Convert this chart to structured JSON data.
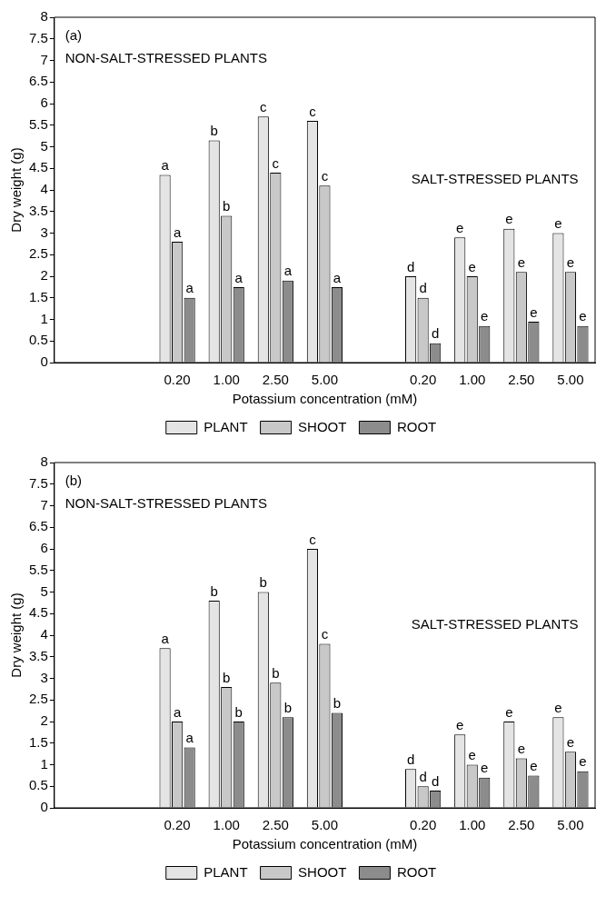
{
  "chart_data": [
    {
      "type": "bar",
      "xlabel": "Potassium concentration (mM)",
      "ylabel": "Dry weight (g)",
      "annotations": [
        "(a)",
        "NON-SALT-STRESSED PLANTS",
        "SALT-STRESSED PLANTS"
      ],
      "categories": [
        null,
        null,
        "0.20",
        "1.00",
        "2.50",
        "5.00",
        null,
        "0.20",
        "1.00",
        "2.50",
        "5.00"
      ],
      "ylim": [
        0,
        8
      ],
      "yticks": [
        0,
        0.5,
        1,
        1.5,
        2,
        2.5,
        3,
        3.5,
        4,
        4.5,
        5,
        5.5,
        6,
        6.5,
        7,
        7.5,
        8
      ],
      "grid": false,
      "legend": "bottom",
      "series": [
        {
          "name": "PLANT",
          "color": "#e4e4e4",
          "values": [
            null,
            null,
            4.35,
            5.15,
            5.7,
            5.6,
            null,
            2.0,
            2.9,
            3.1,
            3.0
          ],
          "value_labels": [
            null,
            null,
            "a",
            "b",
            "c",
            "c",
            null,
            "d",
            "e",
            "e",
            "e"
          ]
        },
        {
          "name": "SHOOT",
          "color": "#c8c8c8",
          "values": [
            null,
            null,
            2.8,
            3.4,
            4.4,
            4.1,
            null,
            1.5,
            2.0,
            2.1,
            2.1
          ],
          "value_labels": [
            null,
            null,
            "a",
            "b",
            "c",
            "c",
            null,
            "d",
            "e",
            "e",
            "e"
          ]
        },
        {
          "name": "ROOT",
          "color": "#8c8c8c",
          "values": [
            null,
            null,
            1.5,
            1.75,
            1.9,
            1.75,
            null,
            0.45,
            0.85,
            0.95,
            0.85
          ],
          "value_labels": [
            null,
            null,
            "a",
            "a",
            "a",
            "a",
            null,
            "d",
            "e",
            "e",
            "e"
          ]
        }
      ]
    },
    {
      "type": "bar",
      "xlabel": "Potassium concentration (mM)",
      "ylabel": "Dry weight (g)",
      "annotations": [
        "(b)",
        "NON-SALT-STRESSED PLANTS",
        "SALT-STRESSED PLANTS"
      ],
      "categories": [
        null,
        null,
        "0.20",
        "1.00",
        "2.50",
        "5.00",
        null,
        "0.20",
        "1.00",
        "2.50",
        "5.00"
      ],
      "ylim": [
        0,
        8
      ],
      "yticks": [
        0,
        0.5,
        1,
        1.5,
        2,
        2.5,
        3,
        3.5,
        4,
        4.5,
        5,
        5.5,
        6,
        6.5,
        7,
        7.5,
        8
      ],
      "grid": false,
      "legend": "bottom",
      "series": [
        {
          "name": "PLANT",
          "color": "#e4e4e4",
          "values": [
            null,
            null,
            3.7,
            4.8,
            5.0,
            6.0,
            null,
            0.9,
            1.7,
            2.0,
            2.1
          ],
          "value_labels": [
            null,
            null,
            "a",
            "b",
            "b",
            "c",
            null,
            "d",
            "e",
            "e",
            "e"
          ]
        },
        {
          "name": "SHOOT",
          "color": "#c8c8c8",
          "values": [
            null,
            null,
            2.0,
            2.8,
            2.9,
            3.8,
            null,
            0.5,
            1.0,
            1.15,
            1.3
          ],
          "value_labels": [
            null,
            null,
            "a",
            "b",
            "b",
            "c",
            null,
            "d",
            "e",
            "e",
            "e"
          ]
        },
        {
          "name": "ROOT",
          "color": "#8c8c8c",
          "values": [
            null,
            null,
            1.4,
            2.0,
            2.1,
            2.2,
            null,
            0.4,
            0.7,
            0.75,
            0.85
          ],
          "value_labels": [
            null,
            null,
            "a",
            "b",
            "b",
            "b",
            null,
            "d",
            "e",
            "e",
            "e"
          ]
        }
      ]
    }
  ]
}
